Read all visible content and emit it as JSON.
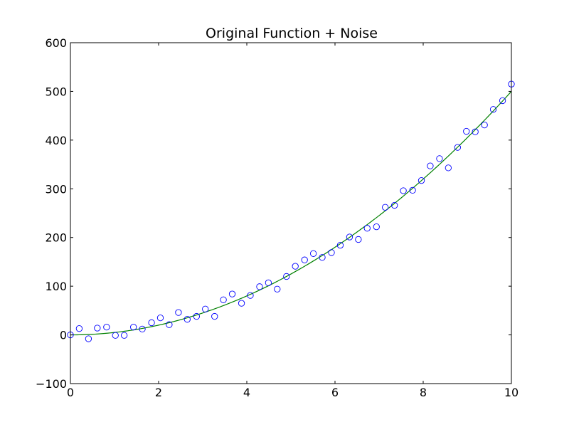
{
  "chart_data": {
    "type": "scatter",
    "title": "Original Function + Noise",
    "xlabel": "",
    "ylabel": "",
    "xlim": [
      0,
      10
    ],
    "ylim": [
      -100,
      600
    ],
    "x_ticks": [
      "0",
      "2",
      "4",
      "6",
      "8",
      "10"
    ],
    "y_ticks": [
      "600",
      "500",
      "400",
      "300",
      "200",
      "100",
      "0",
      "−100"
    ],
    "x_tick_values": [
      0,
      2,
      4,
      6,
      8,
      10
    ],
    "y_tick_values": [
      600,
      500,
      400,
      300,
      200,
      100,
      0,
      -100
    ],
    "grid": false,
    "legend": "none",
    "series": [
      {
        "kind": "markers",
        "marker": "open-circle",
        "color": "#0000ff",
        "points": [
          [
            0.0,
            0
          ],
          [
            0.2,
            13
          ],
          [
            0.41,
            -8
          ],
          [
            0.61,
            14
          ],
          [
            0.82,
            16
          ],
          [
            1.02,
            -1
          ],
          [
            1.22,
            -1
          ],
          [
            1.43,
            16
          ],
          [
            1.63,
            12
          ],
          [
            1.84,
            25
          ],
          [
            2.04,
            35
          ],
          [
            2.24,
            21
          ],
          [
            2.45,
            46
          ],
          [
            2.65,
            32
          ],
          [
            2.86,
            38
          ],
          [
            3.06,
            53
          ],
          [
            3.27,
            38
          ],
          [
            3.47,
            72
          ],
          [
            3.67,
            84
          ],
          [
            3.88,
            65
          ],
          [
            4.08,
            81
          ],
          [
            4.29,
            99
          ],
          [
            4.49,
            107
          ],
          [
            4.69,
            94
          ],
          [
            4.9,
            120
          ],
          [
            5.1,
            141
          ],
          [
            5.31,
            154
          ],
          [
            5.51,
            167
          ],
          [
            5.71,
            159
          ],
          [
            5.92,
            169
          ],
          [
            6.12,
            184
          ],
          [
            6.33,
            201
          ],
          [
            6.53,
            196
          ],
          [
            6.73,
            219
          ],
          [
            6.94,
            222
          ],
          [
            7.14,
            262
          ],
          [
            7.35,
            266
          ],
          [
            7.55,
            296
          ],
          [
            7.76,
            297
          ],
          [
            7.96,
            317
          ],
          [
            8.16,
            347
          ],
          [
            8.37,
            362
          ],
          [
            8.57,
            343
          ],
          [
            8.78,
            385
          ],
          [
            8.98,
            418
          ],
          [
            9.18,
            417
          ],
          [
            9.39,
            431
          ],
          [
            9.59,
            463
          ],
          [
            9.8,
            481
          ],
          [
            10.0,
            515
          ]
        ]
      },
      {
        "kind": "line",
        "color": "#008000",
        "function": "5*x^2",
        "x": [
          0,
          0.5,
          1,
          1.5,
          2,
          2.5,
          3,
          3.5,
          4,
          4.5,
          5,
          5.5,
          6,
          6.5,
          7,
          7.5,
          8,
          8.5,
          9,
          9.5,
          10
        ],
        "y": [
          0,
          1.25,
          5,
          11.25,
          20,
          31.25,
          45,
          61.25,
          80,
          101.25,
          125,
          151.25,
          180,
          211.25,
          245,
          281.25,
          320,
          361.25,
          405,
          451.25,
          500
        ]
      }
    ]
  }
}
